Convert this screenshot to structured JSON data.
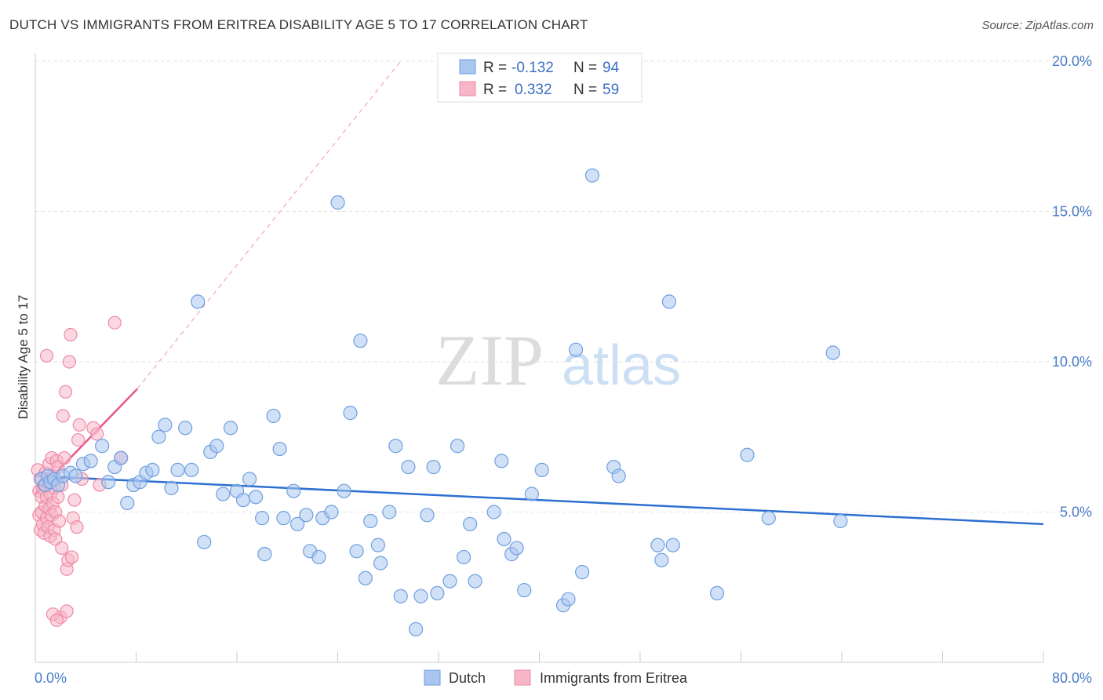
{
  "header": {
    "title": "DUTCH VS IMMIGRANTS FROM ERITREA DISABILITY AGE 5 TO 17 CORRELATION CHART",
    "source": "Source: ZipAtlas.com"
  },
  "watermark": {
    "zip": "ZIP",
    "atlas": "atlas"
  },
  "colors": {
    "dutch_fill": "#a9c6ee",
    "dutch_stroke": "#6f9fe0",
    "dutch_line": "#2d6fd0",
    "eritrea_fill": "#f7b6c8",
    "eritrea_stroke": "#ee8aa8",
    "eritrea_line": "#e8578a",
    "grid": "#e2e2e2",
    "tick_text": "#4a7cc8"
  },
  "legend": {
    "r_label": "R =",
    "n_label": "N =",
    "series": [
      {
        "name": "Dutch",
        "r": "-0.132",
        "n": "94"
      },
      {
        "name": "Immigrants from Eritrea",
        "r": "0.332",
        "n": "59"
      }
    ]
  },
  "chart_data": {
    "type": "scatter",
    "title": "DUTCH VS IMMIGRANTS FROM ERITREA DISABILITY AGE 5 TO 17 CORRELATION CHART",
    "xlabel": "",
    "ylabel": "Disability Age 5 to 17",
    "xlim": [
      0,
      80
    ],
    "ylim": [
      0,
      21
    ],
    "x_tick_labels": [
      "0.0%",
      "80.0%"
    ],
    "y_ticks": [
      {
        "value": 5,
        "label": "5.0%"
      },
      {
        "value": 10,
        "label": "10.0%"
      },
      {
        "value": 15,
        "label": "15.0%"
      },
      {
        "value": 20,
        "label": "20.0%"
      }
    ],
    "grid": true,
    "legend_position": "top-center",
    "series": [
      {
        "name": "Dutch",
        "r": -0.132,
        "n": 94,
        "trend": {
          "x": [
            0,
            80
          ],
          "y": [
            6.2,
            4.6
          ]
        },
        "points": [
          [
            0.5,
            6.1
          ],
          [
            0.8,
            5.9
          ],
          [
            1.0,
            6.2
          ],
          [
            1.2,
            6.0
          ],
          [
            1.5,
            6.1
          ],
          [
            1.8,
            5.9
          ],
          [
            2.2,
            6.2
          ],
          [
            2.8,
            6.3
          ],
          [
            3.2,
            6.2
          ],
          [
            3.8,
            6.6
          ],
          [
            4.4,
            6.7
          ],
          [
            5.3,
            7.2
          ],
          [
            5.8,
            6.0
          ],
          [
            6.3,
            6.5
          ],
          [
            6.8,
            6.8
          ],
          [
            7.3,
            5.3
          ],
          [
            7.8,
            5.9
          ],
          [
            8.3,
            6.0
          ],
          [
            8.8,
            6.3
          ],
          [
            9.3,
            6.4
          ],
          [
            9.8,
            7.5
          ],
          [
            10.3,
            7.9
          ],
          [
            10.8,
            5.8
          ],
          [
            11.3,
            6.4
          ],
          [
            11.9,
            7.8
          ],
          [
            12.4,
            6.4
          ],
          [
            12.9,
            12.0
          ],
          [
            13.4,
            4.0
          ],
          [
            13.9,
            7.0
          ],
          [
            14.4,
            7.2
          ],
          [
            14.9,
            5.6
          ],
          [
            15.5,
            7.8
          ],
          [
            16.0,
            5.7
          ],
          [
            16.5,
            5.4
          ],
          [
            17.0,
            6.1
          ],
          [
            17.5,
            5.5
          ],
          [
            18.0,
            4.8
          ],
          [
            18.2,
            3.6
          ],
          [
            18.9,
            8.2
          ],
          [
            19.4,
            7.1
          ],
          [
            19.7,
            4.8
          ],
          [
            20.5,
            5.7
          ],
          [
            20.8,
            4.6
          ],
          [
            21.5,
            4.9
          ],
          [
            21.8,
            3.7
          ],
          [
            22.5,
            3.5
          ],
          [
            22.8,
            4.8
          ],
          [
            23.5,
            5.0
          ],
          [
            24.0,
            15.3
          ],
          [
            24.5,
            5.7
          ],
          [
            25.0,
            8.3
          ],
          [
            25.5,
            3.7
          ],
          [
            25.8,
            10.7
          ],
          [
            26.2,
            2.8
          ],
          [
            26.6,
            4.7
          ],
          [
            27.2,
            3.9
          ],
          [
            27.4,
            3.3
          ],
          [
            28.1,
            5.0
          ],
          [
            28.6,
            7.2
          ],
          [
            29.0,
            2.2
          ],
          [
            29.6,
            6.5
          ],
          [
            30.2,
            1.1
          ],
          [
            30.6,
            2.2
          ],
          [
            31.1,
            4.9
          ],
          [
            31.6,
            6.5
          ],
          [
            31.9,
            2.3
          ],
          [
            32.9,
            2.7
          ],
          [
            33.5,
            7.2
          ],
          [
            34.0,
            3.5
          ],
          [
            34.5,
            4.6
          ],
          [
            34.9,
            2.7
          ],
          [
            36.4,
            5.0
          ],
          [
            37.0,
            6.7
          ],
          [
            37.2,
            4.1
          ],
          [
            37.8,
            3.6
          ],
          [
            38.2,
            3.8
          ],
          [
            38.8,
            2.4
          ],
          [
            39.4,
            5.6
          ],
          [
            40.2,
            6.4
          ],
          [
            41.9,
            1.9
          ],
          [
            42.3,
            2.1
          ],
          [
            42.9,
            10.4
          ],
          [
            43.4,
            3.0
          ],
          [
            44.2,
            16.2
          ],
          [
            45.9,
            6.5
          ],
          [
            46.3,
            6.2
          ],
          [
            49.4,
            3.9
          ],
          [
            49.7,
            3.4
          ],
          [
            50.3,
            12.0
          ],
          [
            50.6,
            3.9
          ],
          [
            54.1,
            2.3
          ],
          [
            56.5,
            6.9
          ],
          [
            58.2,
            4.8
          ],
          [
            63.3,
            10.3
          ],
          [
            63.9,
            4.7
          ]
        ]
      },
      {
        "name": "Immigrants from Eritrea",
        "r": 0.332,
        "n": 59,
        "trend": {
          "x": [
            0,
            8.1
          ],
          "y": [
            5.6,
            9.1
          ]
        },
        "trend_extended": {
          "x": [
            8.1,
            29.0
          ],
          "y": [
            9.1,
            20.0
          ]
        },
        "points": [
          [
            0.2,
            6.4
          ],
          [
            0.3,
            5.7
          ],
          [
            0.3,
            4.9
          ],
          [
            0.4,
            4.4
          ],
          [
            0.4,
            6.1
          ],
          [
            0.5,
            5.5
          ],
          [
            0.5,
            5.0
          ],
          [
            0.6,
            4.6
          ],
          [
            0.6,
            5.8
          ],
          [
            0.7,
            4.3
          ],
          [
            0.7,
            5.9
          ],
          [
            0.8,
            6.3
          ],
          [
            0.8,
            5.2
          ],
          [
            0.9,
            4.8
          ],
          [
            0.9,
            5.5
          ],
          [
            1.0,
            4.5
          ],
          [
            1.0,
            6.0
          ],
          [
            1.1,
            5.1
          ],
          [
            1.1,
            6.6
          ],
          [
            1.2,
            4.2
          ],
          [
            1.2,
            5.6
          ],
          [
            1.3,
            6.8
          ],
          [
            1.3,
            4.9
          ],
          [
            1.4,
            5.3
          ],
          [
            1.4,
            6.2
          ],
          [
            1.5,
            4.4
          ],
          [
            1.5,
            5.8
          ],
          [
            1.6,
            5.0
          ],
          [
            1.6,
            4.1
          ],
          [
            1.7,
            6.7
          ],
          [
            1.8,
            6.5
          ],
          [
            1.8,
            5.5
          ],
          [
            1.9,
            4.7
          ],
          [
            0.9,
            10.2
          ],
          [
            2.1,
            3.8
          ],
          [
            2.1,
            5.9
          ],
          [
            2.2,
            8.2
          ],
          [
            2.3,
            6.8
          ],
          [
            2.4,
            9.0
          ],
          [
            2.5,
            3.1
          ],
          [
            2.6,
            3.4
          ],
          [
            2.7,
            10.0
          ],
          [
            2.8,
            10.9
          ],
          [
            2.9,
            3.5
          ],
          [
            3.0,
            4.8
          ],
          [
            3.1,
            5.4
          ],
          [
            3.3,
            4.5
          ],
          [
            3.4,
            7.4
          ],
          [
            3.5,
            7.9
          ],
          [
            3.7,
            6.1
          ],
          [
            4.6,
            7.8
          ],
          [
            4.9,
            7.6
          ],
          [
            5.1,
            5.9
          ],
          [
            6.3,
            11.3
          ],
          [
            6.8,
            6.8
          ],
          [
            2.0,
            1.5
          ],
          [
            1.4,
            1.6
          ],
          [
            2.5,
            1.7
          ],
          [
            1.7,
            1.4
          ]
        ]
      }
    ]
  },
  "bottom_legend": [
    "Dutch",
    "Immigrants from Eritrea"
  ]
}
